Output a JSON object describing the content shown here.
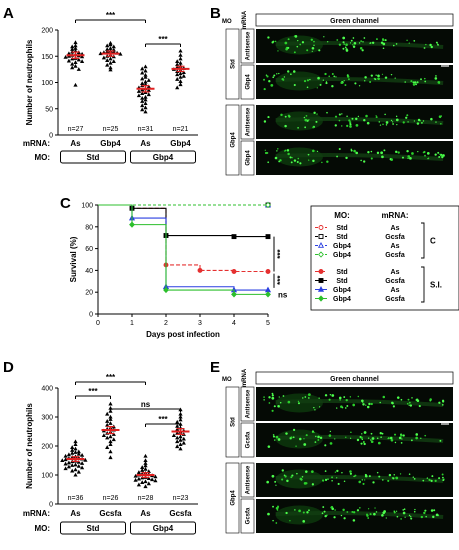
{
  "panel_labels": [
    "A",
    "B",
    "C",
    "D",
    "E"
  ],
  "row_labels": {
    "mrna": "mRNA:",
    "mo": "MO:"
  },
  "imaging": {
    "header": "Green channel",
    "mo_label": "MO",
    "mrna_label": "mRNA",
    "B": {
      "groups": [
        {
          "mo": "Std",
          "rows": [
            "Antisense",
            "Gbp4"
          ]
        },
        {
          "mo": "Gbp4",
          "rows": [
            "Antisense",
            "Gbp4"
          ]
        }
      ]
    },
    "E": {
      "groups": [
        {
          "mo": "Std",
          "rows": [
            "Antisense",
            "Gcsfa"
          ]
        },
        {
          "mo": "Gbp4",
          "rows": [
            "Antisense",
            "Gcsfa"
          ]
        }
      ]
    }
  },
  "chart_data": [
    {
      "panel": "A",
      "type": "scatter",
      "ylabel": "Number of neutrophils",
      "ylim": [
        0,
        200
      ],
      "yticks": [
        0,
        50,
        100,
        150,
        200
      ],
      "categories": [
        "As",
        "Gbp4",
        "As",
        "Gbp4"
      ],
      "mrna": [
        "As",
        "Gbp4",
        "As",
        "Gbp4"
      ],
      "mo_groups": [
        {
          "label": "Std",
          "span": [
            0,
            1
          ]
        },
        {
          "label": "Gbp4",
          "span": [
            2,
            3
          ]
        }
      ],
      "n_labels": [
        "n=27",
        "n=25",
        "n=31",
        "n=21"
      ],
      "means": [
        152,
        155,
        88,
        126
      ],
      "sem": [
        6,
        5,
        6,
        5
      ],
      "points": [
        [
          176,
          170,
          168,
          165,
          163,
          160,
          158,
          157,
          155,
          154,
          153,
          152,
          151,
          150,
          149,
          148,
          146,
          145,
          143,
          141,
          140,
          138,
          135,
          131,
          128,
          125,
          95
        ],
        [
          175,
          172,
          170,
          168,
          165,
          163,
          162,
          160,
          159,
          158,
          157,
          156,
          155,
          154,
          152,
          150,
          149,
          147,
          145,
          142,
          140,
          137,
          133,
          128,
          124
        ],
        [
          130,
          126,
          122,
          118,
          114,
          110,
          107,
          104,
          101,
          98,
          96,
          94,
          92,
          90,
          88,
          86,
          85,
          83,
          81,
          79,
          77,
          75,
          72,
          70,
          67,
          64,
          60,
          56,
          52,
          48,
          44
        ],
        [
          160,
          152,
          145,
          140,
          137,
          134,
          131,
          129,
          127,
          125,
          123,
          121,
          119,
          117,
          115,
          112,
          110,
          106,
          102,
          96,
          90
        ]
      ],
      "significance": [
        {
          "from": 0,
          "to": 2,
          "label": "***"
        },
        {
          "from": 2,
          "to": 3,
          "label": "***"
        }
      ]
    },
    {
      "panel": "C",
      "type": "line",
      "xlabel": "Days post infection",
      "ylabel": "Survival (%)",
      "x": [
        0,
        1,
        2,
        3,
        4,
        5
      ],
      "xlim": [
        0,
        5
      ],
      "ylim": [
        0,
        100
      ],
      "yticks": [
        0,
        20,
        40,
        60,
        80,
        100
      ],
      "legend_header": {
        "mo": "MO:",
        "mrna": "mRNA:"
      },
      "legend_groups": [
        {
          "label": "C",
          "series": [
            0,
            1,
            2,
            3
          ]
        },
        {
          "label": "S.I.",
          "series": [
            4,
            5,
            6,
            7
          ]
        }
      ],
      "series": [
        {
          "mo": "Std",
          "mrna": "As",
          "color": "#e53030",
          "marker": "circle-open",
          "dash": "3,2",
          "steps": [
            [
              0,
              100
            ],
            [
              5,
              100
            ]
          ]
        },
        {
          "mo": "Std",
          "mrna": "Gcsfa",
          "color": "#000000",
          "marker": "square-open",
          "dash": "3,2",
          "steps": [
            [
              0,
              100
            ],
            [
              5,
              100
            ]
          ]
        },
        {
          "mo": "Gbp4",
          "mrna": "As",
          "color": "#2a3fe0",
          "marker": "triangle-open",
          "dash": "3,2",
          "steps": [
            [
              0,
              100
            ],
            [
              5,
              100
            ]
          ]
        },
        {
          "mo": "Gbp4",
          "mrna": "Gcsfa",
          "color": "#2cbf2c",
          "marker": "diamond-open",
          "dash": "3,2",
          "steps": [
            [
              0,
              100
            ],
            [
              5,
              100
            ]
          ]
        },
        {
          "mo": "Std",
          "mrna": "As",
          "color": "#e53030",
          "marker": "circle",
          "dash": "4,2",
          "steps": [
            [
              0,
              100
            ],
            [
              1,
              97
            ],
            [
              2,
              45
            ],
            [
              3,
              40
            ],
            [
              4,
              39
            ],
            [
              5,
              39
            ]
          ]
        },
        {
          "mo": "Std",
          "mrna": "Gcsfa",
          "color": "#000000",
          "marker": "square",
          "dash": "",
          "steps": [
            [
              0,
              100
            ],
            [
              1,
              97
            ],
            [
              2,
              72
            ],
            [
              4,
              71
            ],
            [
              5,
              71
            ]
          ]
        },
        {
          "mo": "Gbp4",
          "mrna": "As",
          "color": "#2a3fe0",
          "marker": "triangle",
          "dash": "",
          "steps": [
            [
              0,
              100
            ],
            [
              1,
              88
            ],
            [
              2,
              25
            ],
            [
              4,
              22
            ],
            [
              5,
              22
            ]
          ]
        },
        {
          "mo": "Gbp4",
          "mrna": "Gcsfa",
          "color": "#2cbf2c",
          "marker": "diamond",
          "dash": "",
          "steps": [
            [
              0,
              100
            ],
            [
              1,
              82
            ],
            [
              2,
              22
            ],
            [
              4,
              18
            ],
            [
              5,
              18
            ]
          ]
        }
      ],
      "significance": [
        "***",
        "***",
        "ns"
      ]
    },
    {
      "panel": "D",
      "type": "scatter",
      "ylabel": "Number of neutrophils",
      "ylim": [
        0,
        400
      ],
      "yticks": [
        0,
        100,
        200,
        300,
        400
      ],
      "categories": [
        "As",
        "Gcsfa",
        "As",
        "Gcsfa"
      ],
      "mrna": [
        "As",
        "Gcsfa",
        "As",
        "Gcsfa"
      ],
      "mo_groups": [
        {
          "label": "Std",
          "span": [
            0,
            1
          ]
        },
        {
          "label": "Gbp4",
          "span": [
            2,
            3
          ]
        }
      ],
      "n_labels": [
        "n=36",
        "n=26",
        "n=28",
        "n=23"
      ],
      "means": [
        155,
        255,
        100,
        250
      ],
      "sem": [
        8,
        12,
        8,
        10
      ],
      "points": [
        [
          215,
          205,
          195,
          190,
          185,
          180,
          178,
          175,
          172,
          170,
          168,
          165,
          163,
          161,
          159,
          157,
          155,
          153,
          151,
          150,
          148,
          146,
          144,
          142,
          140,
          138,
          135,
          133,
          130,
          128,
          125,
          122,
          118,
          114,
          110,
          100
        ],
        [
          345,
          330,
          320,
          310,
          300,
          292,
          285,
          278,
          272,
          266,
          262,
          258,
          255,
          252,
          248,
          244,
          240,
          236,
          232,
          228,
          222,
          215,
          205,
          195,
          180,
          160
        ],
        [
          165,
          150,
          140,
          132,
          126,
          120,
          116,
          112,
          109,
          106,
          104,
          102,
          100,
          98,
          96,
          94,
          92,
          90,
          88,
          86,
          84,
          82,
          80,
          77,
          74,
          70,
          66,
          60
        ],
        [
          325,
          310,
          300,
          290,
          282,
          275,
          268,
          262,
          257,
          252,
          248,
          244,
          240,
          236,
          232,
          228,
          224,
          220,
          215,
          210,
          205,
          198,
          190
        ]
      ],
      "significance": [
        {
          "from": 0,
          "to": 2,
          "label": "***"
        },
        {
          "from": 0,
          "to": 1,
          "label": "***"
        },
        {
          "from": 1,
          "to": 3,
          "label": "ns"
        },
        {
          "from": 2,
          "to": 3,
          "label": "***"
        }
      ]
    }
  ]
}
